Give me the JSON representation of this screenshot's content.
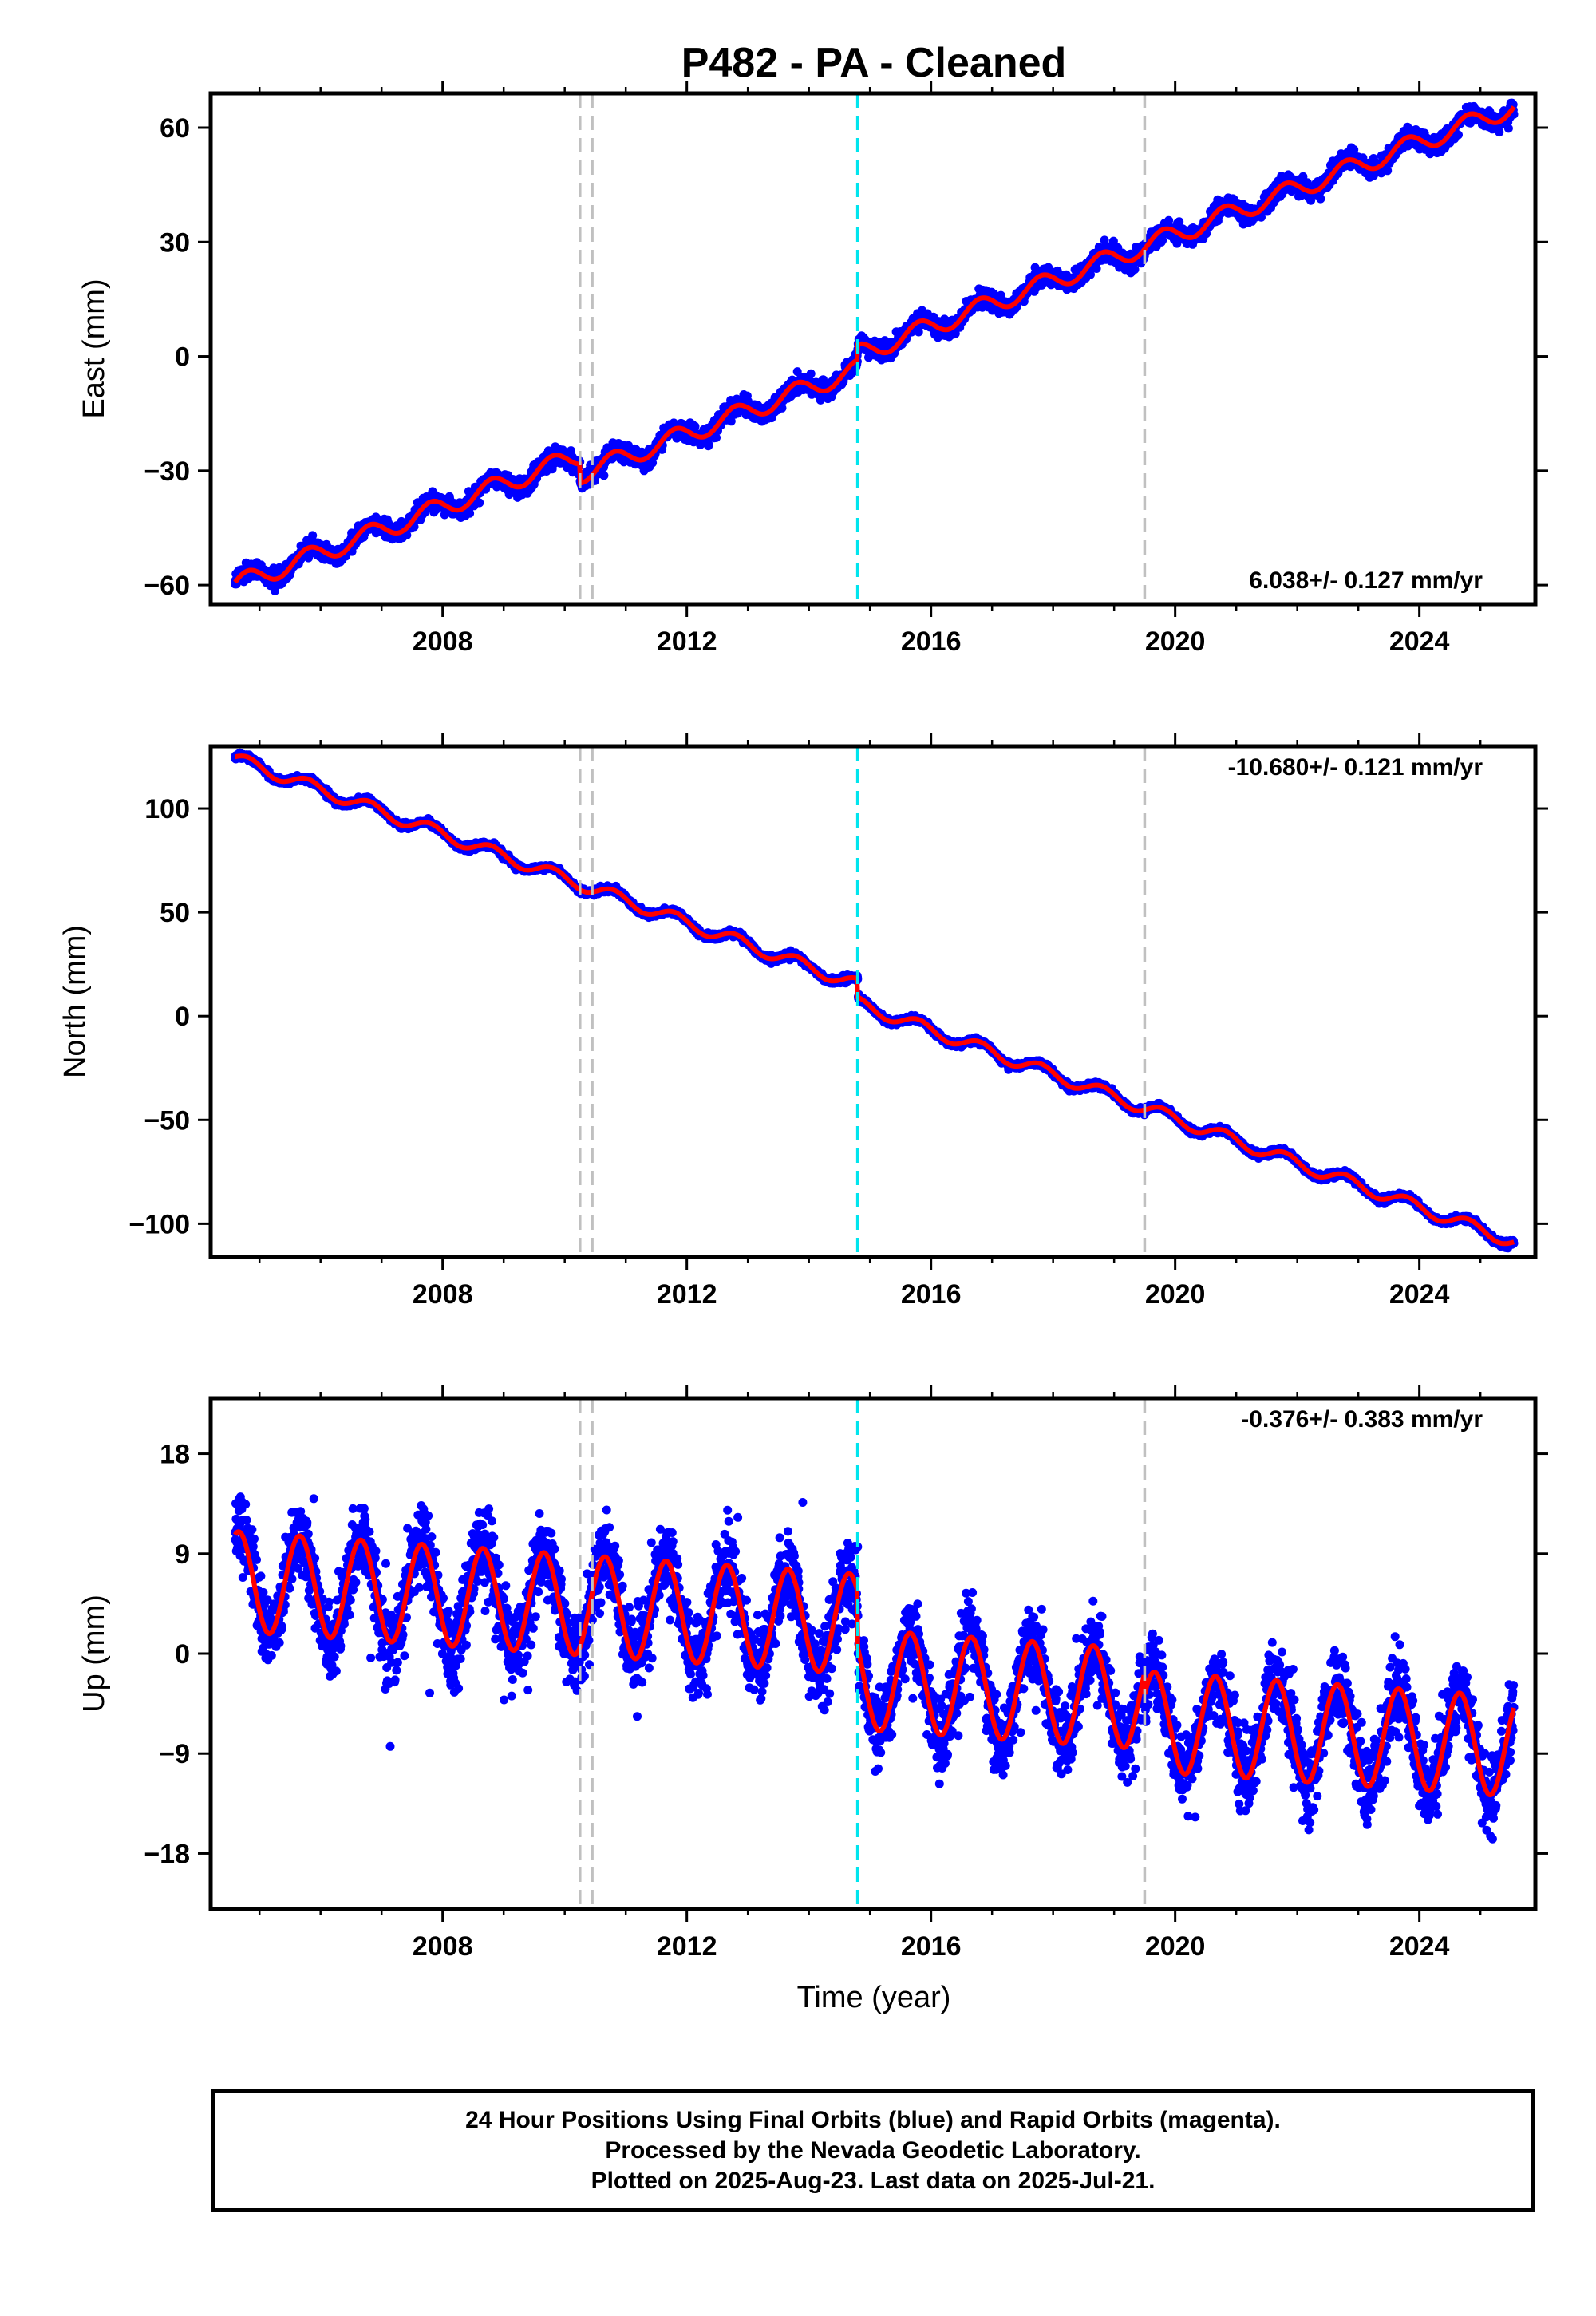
{
  "title": "P482  - PA - Cleaned",
  "xlabel": "Time (year)",
  "footer": {
    "line1": "24 Hour Positions Using Final Orbits (blue) and Rapid Orbits (magenta).",
    "line2": "Processed by the Nevada Geodetic Laboratory.",
    "line3": "Plotted on 2025-Aug-23. Last data on 2025-Jul-21."
  },
  "colors": {
    "points_final": "#0000ff",
    "points_rapid": "#ff00ff",
    "model": "#ff0000",
    "equipment_change": "#c0c0c0",
    "earthquake": "#00e5ee"
  },
  "chart_data": [
    {
      "type": "scatter",
      "name": "East",
      "ylabel": "East (mm)",
      "rate_text": "6.038+/- 0.127 mm/yr",
      "rate_position": "bottom-right",
      "xlim": [
        2004.2,
        2025.9
      ],
      "ylim": [
        -65,
        69
      ],
      "xticks": [
        2008,
        2012,
        2016,
        2020,
        2024
      ],
      "xtick_labels": [
        "2008",
        "2012",
        "2016",
        "2020",
        "2024"
      ],
      "yticks": [
        -60,
        -30,
        0,
        30,
        60
      ],
      "ytick_labels": [
        "−60",
        "−30",
        "0",
        "30",
        "60"
      ],
      "trend": {
        "t0": 2004.6,
        "y0": -60,
        "rate": 6.038
      },
      "offsets": [
        {
          "t": 2010.25,
          "dy": -5
        },
        {
          "t": 2014.8,
          "dy": 4
        }
      ],
      "seasonal_amplitude": 2.5,
      "scatter_sd": 2.3,
      "x_start": 2004.6,
      "x_end": 2025.55
    },
    {
      "type": "scatter",
      "name": "North",
      "ylabel": "North (mm)",
      "rate_text": "-10.680+/- 0.121 mm/yr",
      "rate_position": "top-right",
      "xlim": [
        2004.2,
        2025.9
      ],
      "ylim": [
        -116,
        130
      ],
      "xticks": [
        2008,
        2012,
        2016,
        2020,
        2024
      ],
      "xtick_labels": [
        "2008",
        "2012",
        "2016",
        "2020",
        "2024"
      ],
      "yticks": [
        -100,
        -50,
        0,
        50,
        100
      ],
      "ytick_labels": [
        "−100",
        "−50",
        "0",
        "50",
        "100"
      ],
      "trend": {
        "t0": 2004.6,
        "y0": 124,
        "rate": -10.68
      },
      "offsets": [
        {
          "t": 2014.8,
          "dy": -9
        }
      ],
      "seasonal_amplitude": 3,
      "scatter_sd": 1.5,
      "x_start": 2004.6,
      "x_end": 2025.55
    },
    {
      "type": "scatter",
      "name": "Up",
      "ylabel": "Up (mm)",
      "rate_text": "-0.376+/- 0.383 mm/yr",
      "rate_position": "top-right",
      "xlim": [
        2004.2,
        2025.9
      ],
      "ylim": [
        -23,
        23
      ],
      "xticks": [
        2008,
        2012,
        2016,
        2020,
        2024
      ],
      "xtick_labels": [
        "2008",
        "2012",
        "2016",
        "2020",
        "2024"
      ],
      "yticks": [
        -18,
        -9,
        0,
        9,
        18
      ],
      "ytick_labels": [
        "−18",
        "−9",
        "0",
        "9",
        "18"
      ],
      "trend": {
        "t0": 2004.6,
        "y0": 6.5,
        "rate": -0.376
      },
      "offsets": [
        {
          "t": 2014.8,
          "dy": -5
        },
        {
          "t": 2019.5,
          "dy": -2
        }
      ],
      "seasonal_amplitude": 4.5,
      "scatter_sd": 3.5,
      "x_start": 2004.6,
      "x_end": 2025.55
    }
  ],
  "event_lines": [
    {
      "t": 2010.25,
      "kind": "equipment"
    },
    {
      "t": 2010.45,
      "kind": "equipment"
    },
    {
      "t": 2014.8,
      "kind": "earthquake"
    },
    {
      "t": 2019.5,
      "kind": "equipment"
    }
  ]
}
